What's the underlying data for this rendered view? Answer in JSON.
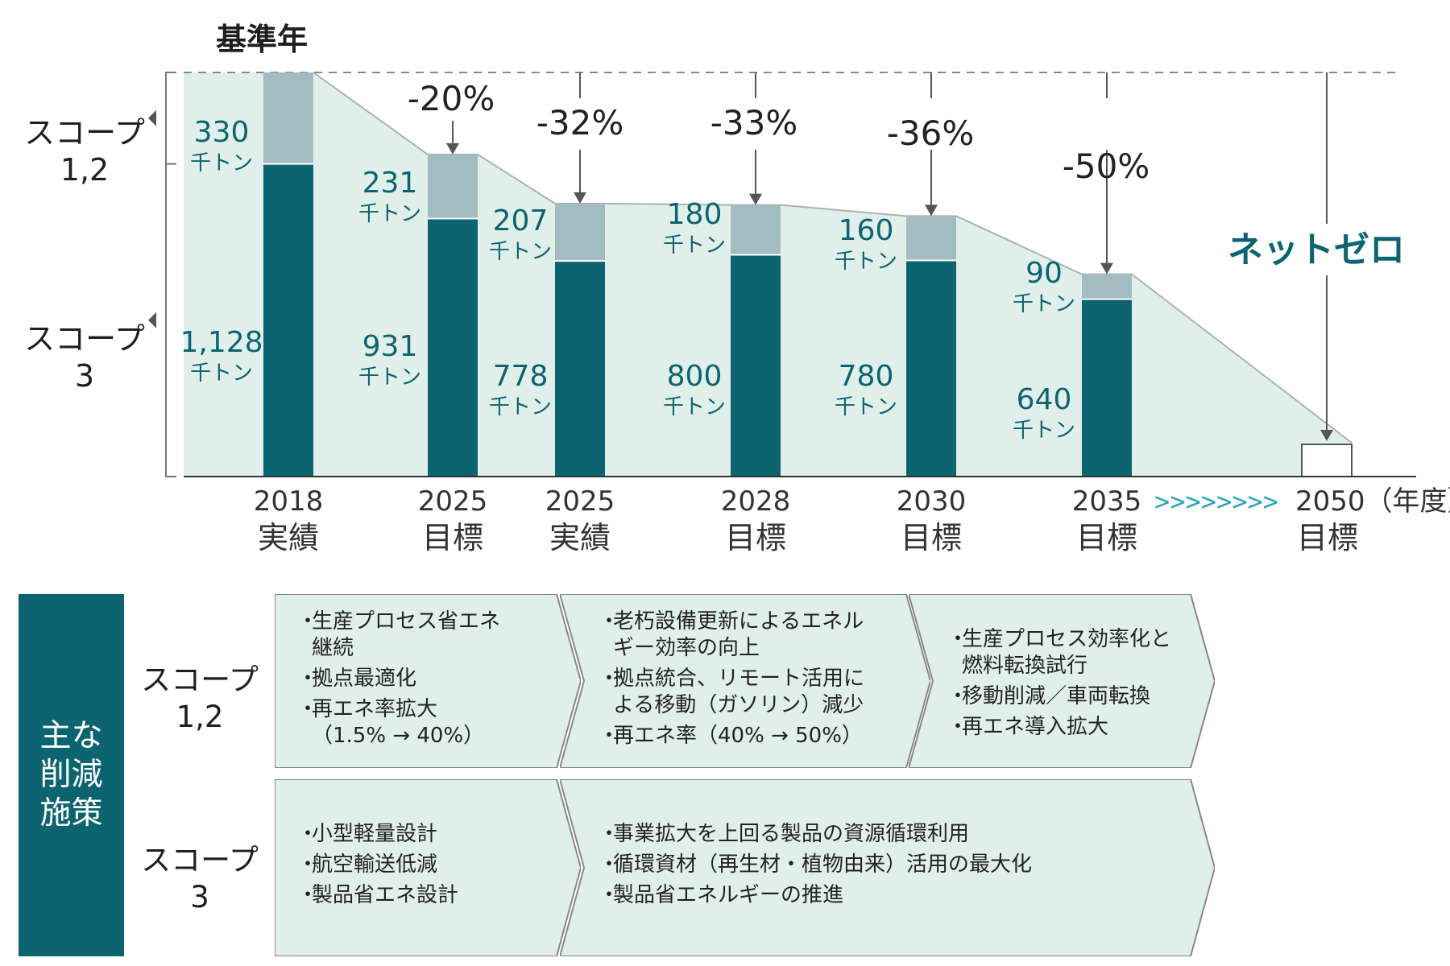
{
  "chart_data": {
    "type": "bar",
    "stacked": true,
    "base_label": "基準年",
    "y_groups": [
      {
        "label_line1": "スコープ",
        "label_line2": "1,2"
      },
      {
        "label_line1": "スコープ",
        "label_line2": "3"
      }
    ],
    "unit": "千トン",
    "categories": [
      {
        "year": "2018",
        "kind": "実績"
      },
      {
        "year": "2025",
        "kind": "目標"
      },
      {
        "year": "2025",
        "kind": "実績"
      },
      {
        "year": "2028",
        "kind": "目標"
      },
      {
        "year": "2030",
        "kind": "目標"
      },
      {
        "year": "2035",
        "kind": "目標"
      },
      {
        "year": "2050（年度）",
        "kind": "目標"
      }
    ],
    "series": [
      {
        "name": "スコープ1,2",
        "color": "#a3bcc1",
        "values": [
          330,
          231,
          207,
          180,
          160,
          90,
          0
        ],
        "labels": [
          "330",
          "231",
          "207",
          "180",
          "160",
          "90",
          ""
        ]
      },
      {
        "name": "スコープ3",
        "color": "#0b6470",
        "values": [
          1128,
          931,
          778,
          800,
          780,
          640,
          0
        ],
        "labels": [
          "1,128",
          "931",
          "778",
          "800",
          "780",
          "640",
          ""
        ]
      }
    ],
    "reductions": [
      "",
      "-20%",
      "-32%",
      "-33%",
      "-36%",
      "-50%",
      ""
    ],
    "net_zero_label": "ネットゼロ",
    "skip_arrows": ">>>>>>>>",
    "colors": {
      "area": "#e1efeb",
      "line": "#a7b3b3",
      "accent": "#0c6470",
      "arrows": "#2aa6b6"
    }
  },
  "measures": {
    "title_lines": [
      "主な",
      "削減",
      "施策"
    ],
    "rows": [
      {
        "label_line1": "スコープ",
        "label_line2": "1,2",
        "boxes": [
          {
            "items": [
              "生産プロセス省エネ\n継続",
              "拠点最適化",
              "再エネ率拡大\n（1.5% → 40%）"
            ]
          },
          {
            "items": [
              "老朽設備更新によるエネル\nギー効率の向上",
              "拠点統合、リモート活用に\nよる移動（ガソリン）減少",
              "再エネ率（40% → 50%）"
            ]
          },
          {
            "items": [
              "生産プロセス効率化と\n燃料転換試行",
              "移動削減／車両転換",
              "再エネ導入拡大"
            ]
          }
        ]
      },
      {
        "label_line1": "スコープ",
        "label_line2": "3",
        "boxes": [
          {
            "items": [
              "小型軽量設計",
              "航空輸送低減",
              "製品省エネ設計"
            ]
          },
          {
            "items": [
              "事業拡大を上回る製品の資源循環利用",
              "循環資材（再生材・植物由来）活用の最大化",
              "製品省エネルギーの推進"
            ]
          }
        ]
      }
    ]
  }
}
